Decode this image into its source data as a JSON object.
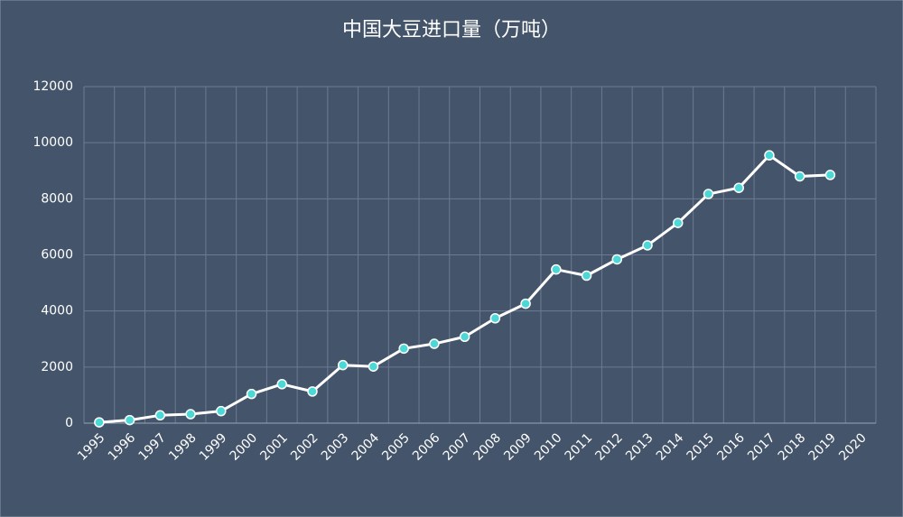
{
  "chart_data": {
    "type": "line",
    "title": "中国大豆进口量（万吨）",
    "categories": [
      "1995",
      "1996",
      "1997",
      "1998",
      "1999",
      "2000",
      "2001",
      "2002",
      "2003",
      "2004",
      "2005",
      "2006",
      "2007",
      "2008",
      "2009",
      "2010",
      "2011",
      "2012",
      "2013",
      "2014",
      "2015",
      "2016",
      "2017",
      "2018",
      "2019",
      "2020"
    ],
    "values": [
      30,
      110,
      280,
      320,
      430,
      1040,
      1390,
      1130,
      2070,
      2020,
      2660,
      2830,
      3080,
      3740,
      4260,
      5480,
      5260,
      5840,
      6340,
      7140,
      8170,
      8390,
      9550,
      8800,
      8850,
      null
    ],
    "color": "#ffffff",
    "marker_color": "#4dd8d8",
    "ylim": [
      0,
      12000
    ],
    "yticks": [
      0,
      2000,
      4000,
      6000,
      8000,
      10000,
      12000
    ],
    "grid": true
  }
}
